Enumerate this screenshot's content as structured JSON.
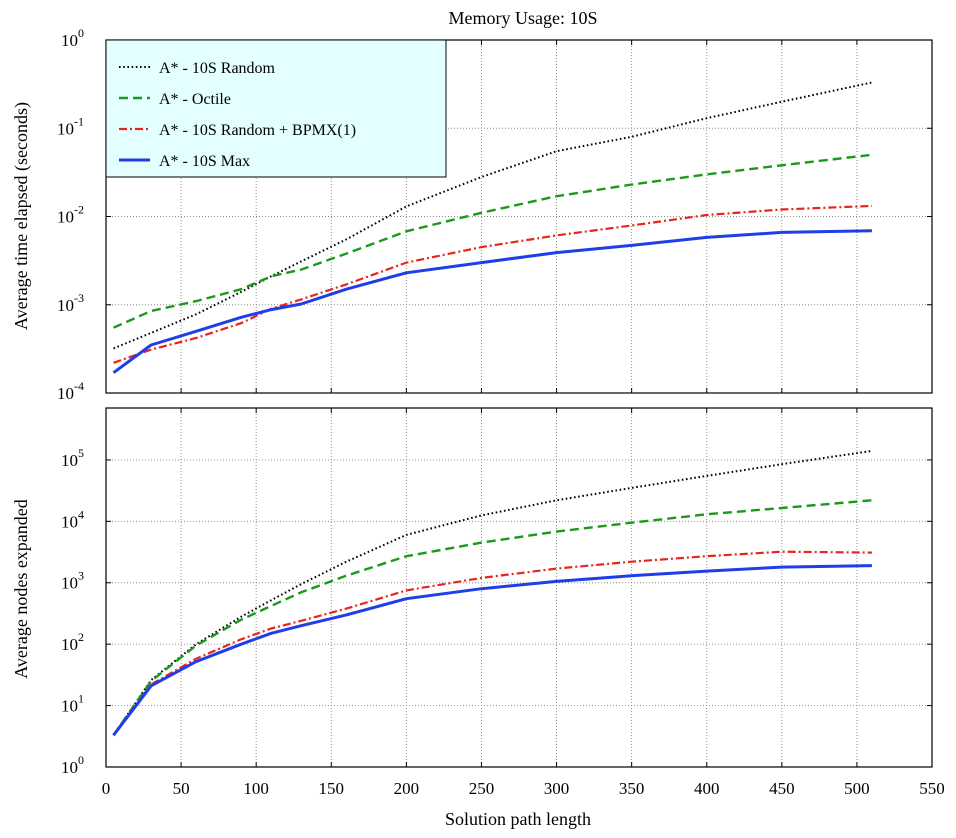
{
  "chart_data": {
    "title": "Memory Usage: 10S",
    "xlabel": "Solution path length",
    "xlim": [
      0,
      550
    ],
    "x_ticks": [
      0,
      50,
      100,
      150,
      200,
      250,
      300,
      350,
      400,
      450,
      500,
      550
    ],
    "grid": true,
    "legend_position": "top-left",
    "colors": {
      "random": "#000000",
      "octile": "#1a9a1a",
      "random_bpmx": "#e8251a",
      "max": "#1f3ee8",
      "legend_bg": "#e3ffff"
    },
    "x": [
      5,
      30,
      60,
      90,
      110,
      130,
      160,
      200,
      250,
      300,
      350,
      400,
      450,
      510
    ],
    "panels": [
      {
        "type": "line",
        "ylabel": "Average time elapsed (seconds)",
        "yscale": "log",
        "ylim": [
          0.0001,
          1
        ],
        "y_ticks": [
          {
            "base": "10",
            "exp": "-4"
          },
          {
            "base": "10",
            "exp": "-3"
          },
          {
            "base": "10",
            "exp": "-2"
          },
          {
            "base": "10",
            "exp": "-1"
          },
          {
            "base": "10",
            "exp": "0"
          }
        ],
        "series": [
          {
            "name": "A* - 10S Random",
            "key": "random",
            "style": "dotted",
            "values": [
              0.00032,
              0.00048,
              0.00078,
              0.0014,
              0.0021,
              0.0031,
              0.0055,
              0.013,
              0.028,
              0.055,
              0.08,
              0.13,
              0.2,
              0.33
            ]
          },
          {
            "name": "A* - Octile",
            "key": "octile",
            "style": "dashed",
            "values": [
              0.00055,
              0.00085,
              0.0011,
              0.0015,
              0.0021,
              0.0025,
              0.0038,
              0.0068,
              0.011,
              0.017,
              0.023,
              0.03,
              0.038,
              0.05
            ]
          },
          {
            "name": "A* - 10S Random + BPMX(1)",
            "key": "random_bpmx",
            "style": "dashdot",
            "values": [
              0.00022,
              0.00031,
              0.00042,
              0.00062,
              0.0009,
              0.00115,
              0.0017,
              0.003,
              0.0045,
              0.0061,
              0.0079,
              0.0104,
              0.012,
              0.0132
            ]
          },
          {
            "name": "A* - 10S Max",
            "key": "max",
            "style": "solid",
            "values": [
              0.00017,
              0.00035,
              0.0005,
              0.00072,
              0.00088,
              0.00102,
              0.0015,
              0.0023,
              0.003,
              0.0039,
              0.0047,
              0.0058,
              0.0066,
              0.0069
            ]
          }
        ]
      },
      {
        "type": "line",
        "ylabel": "Average nodes expanded",
        "yscale": "log",
        "ylim": [
          1,
          700000
        ],
        "y_ticks": [
          {
            "base": "10",
            "exp": "0"
          },
          {
            "base": "10",
            "exp": "1"
          },
          {
            "base": "10",
            "exp": "2"
          },
          {
            "base": "10",
            "exp": "3"
          },
          {
            "base": "10",
            "exp": "4"
          },
          {
            "base": "10",
            "exp": "5"
          }
        ],
        "series": [
          {
            "name": "A* - 10S Random",
            "key": "random",
            "style": "dotted",
            "values": [
              3.3,
              26,
              100,
              280,
              520,
              950,
              2200,
              6000,
              12500,
              22000,
              35000,
              55000,
              85000,
              140000
            ]
          },
          {
            "name": "A* - Octile",
            "key": "octile",
            "style": "dashed",
            "values": [
              3.3,
              25,
              95,
              250,
              420,
              700,
              1300,
              2700,
              4500,
              6800,
              9500,
              13000,
              16500,
              22000
            ]
          },
          {
            "name": "A* - 10S Random + BPMX(1)",
            "key": "random_bpmx",
            "style": "dashdot",
            "values": [
              3.3,
              22,
              58,
              120,
              180,
              240,
              380,
              750,
              1200,
              1700,
              2200,
              2700,
              3200,
              3100
            ]
          },
          {
            "name": "A* - 10S Max",
            "key": "max",
            "style": "solid",
            "values": [
              3.3,
              21,
              52,
              100,
              150,
              200,
              300,
              550,
              800,
              1050,
              1300,
              1550,
              1800,
              1900
            ]
          }
        ]
      }
    ]
  }
}
